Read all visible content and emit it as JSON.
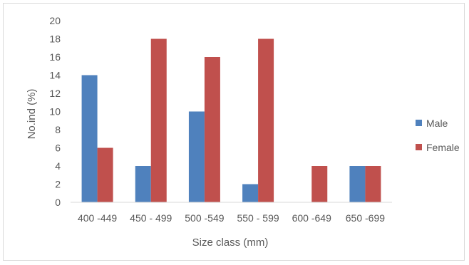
{
  "chart_data": {
    "type": "bar",
    "title": "",
    "xlabel": "Size class (mm)",
    "ylabel": "No.ind (%)",
    "ylim": [
      0,
      20
    ],
    "yticks": [
      0,
      2,
      4,
      6,
      8,
      10,
      12,
      14,
      16,
      18,
      20
    ],
    "grid": false,
    "legend_position": "right",
    "categories": [
      "400 -449",
      "450 - 499",
      "500 -549",
      "550 - 599",
      "600 -649",
      "650 -699"
    ],
    "series": [
      {
        "name": "Male",
        "color": "#4f81bd",
        "values": [
          14,
          4,
          10,
          2,
          0,
          4
        ]
      },
      {
        "name": "Female",
        "color": "#c0504d",
        "values": [
          6,
          18,
          16,
          18,
          4,
          4
        ]
      }
    ]
  }
}
